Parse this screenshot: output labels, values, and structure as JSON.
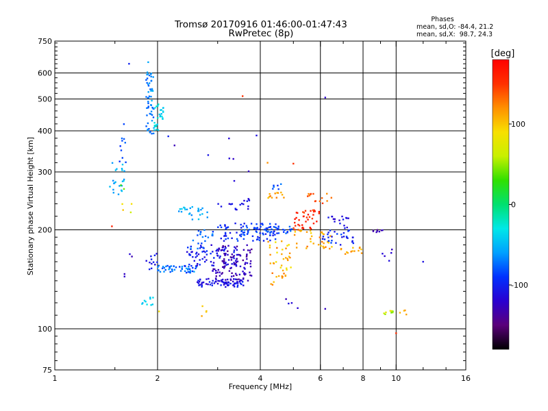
{
  "chart_data": {
    "type": "scatter",
    "title": "Tromsø 20170916 01:46:00-01:47:43",
    "subtitle": "RwPretec (8p)",
    "xlabel": "Frequency [MHz]",
    "ylabel": "Stationary phase Virtual Height [km]",
    "x_scale": "log2",
    "y_scale": "log",
    "xlim": [
      1,
      16
    ],
    "ylim": [
      75,
      750
    ],
    "x_ticks": [
      1,
      2,
      4,
      6,
      8,
      10,
      16
    ],
    "x_tick_labels": [
      "1",
      "2",
      "4",
      "6",
      "8",
      "10",
      "16"
    ],
    "y_ticks": [
      75,
      100,
      200,
      300,
      400,
      500,
      600,
      750
    ],
    "y_tick_labels": [
      "75",
      "100",
      "200",
      "300",
      "400",
      "500",
      "600",
      "750"
    ],
    "grid": true,
    "phase_stats": {
      "heading": "Phases",
      "line_o": "mean, sd,O: -84.4, 21.2",
      "line_x": "mean, sd,X:  98.7, 24.3"
    },
    "colorbar": {
      "label": "[deg]",
      "range": [
        -180,
        180
      ],
      "ticks": [
        100,
        0,
        -100
      ],
      "tick_labels": [
        "100",
        "0",
        "-100"
      ],
      "colormap": [
        "#000000",
        "#5a007a",
        "#2a00d0",
        "#0030ff",
        "#00a0ff",
        "#00e8e8",
        "#00e070",
        "#30e000",
        "#c8f000",
        "#f8e000",
        "#ff9000",
        "#ff3000",
        "#ff0000"
      ]
    },
    "clusters": [
      {
        "x": [
          1.45,
          1.6
        ],
        "y": [
          250,
          330
        ],
        "phase": [
          -40,
          -70
        ],
        "n": 22
      },
      {
        "x": [
          1.5,
          1.62
        ],
        "y": [
          300,
          420
        ],
        "phase": [
          -75,
          -95
        ],
        "n": 10
      },
      {
        "x": [
          1.55,
          1.7
        ],
        "y": [
          195,
          280
        ],
        "phase": [
          20,
          120
        ],
        "n": 6
      },
      {
        "x": [
          1.6,
          1.7
        ],
        "y": [
          135,
          175
        ],
        "phase": [
          -110,
          -130
        ],
        "n": 4
      },
      {
        "x": [
          1.84,
          1.95
        ],
        "y": [
          490,
          650
        ],
        "phase": [
          -50,
          -80
        ],
        "n": 30
      },
      {
        "x": [
          1.85,
          1.95
        ],
        "y": [
          390,
          490
        ],
        "phase": [
          -60,
          -85
        ],
        "n": 25
      },
      {
        "x": [
          1.95,
          2.08
        ],
        "y": [
          400,
          490
        ],
        "phase": [
          -20,
          -50
        ],
        "n": 28
      },
      {
        "x": [
          1.8,
          1.95
        ],
        "y": [
          118,
          126
        ],
        "phase": [
          -30,
          -55
        ],
        "n": 10
      },
      {
        "x": [
          1.85,
          2.0
        ],
        "y": [
          150,
          170
        ],
        "phase": [
          -90,
          -115
        ],
        "n": 12
      },
      {
        "x": [
          2.0,
          2.6
        ],
        "y": [
          148,
          156
        ],
        "phase": [
          -55,
          -95
        ],
        "n": 50
      },
      {
        "x": [
          2.4,
          3.5
        ],
        "y": [
          155,
          180
        ],
        "phase": [
          -90,
          -120
        ],
        "n": 80
      },
      {
        "x": [
          2.6,
          3.6
        ],
        "y": [
          134,
          142
        ],
        "phase": [
          -95,
          -125
        ],
        "n": 70
      },
      {
        "x": [
          2.9,
          3.8
        ],
        "y": [
          140,
          160
        ],
        "phase": [
          -115,
          -140
        ],
        "n": 60
      },
      {
        "x": [
          3.0,
          3.8
        ],
        "y": [
          160,
          180
        ],
        "phase": [
          -120,
          -145
        ],
        "n": 40
      },
      {
        "x": [
          2.3,
          2.8
        ],
        "y": [
          215,
          235
        ],
        "phase": [
          -40,
          -70
        ],
        "n": 25
      },
      {
        "x": [
          2.5,
          3.0
        ],
        "y": [
          175,
          200
        ],
        "phase": [
          -60,
          -90
        ],
        "n": 20
      },
      {
        "x": [
          2.6,
          2.9
        ],
        "y": [
          108,
          118
        ],
        "phase": [
          90,
          120
        ],
        "n": 4
      },
      {
        "x": [
          3.0,
          4.5
        ],
        "y": [
          185,
          210
        ],
        "phase": [
          -80,
          -110
        ],
        "n": 70
      },
      {
        "x": [
          3.5,
          5.0
        ],
        "y": [
          195,
          205
        ],
        "phase": [
          -70,
          -100
        ],
        "n": 50
      },
      {
        "x": [
          3.0,
          3.8
        ],
        "y": [
          230,
          250
        ],
        "phase": [
          -100,
          -120
        ],
        "n": 18
      },
      {
        "x": [
          4.2,
          4.7
        ],
        "y": [
          248,
          260
        ],
        "phase": [
          100,
          130
        ],
        "n": 12
      },
      {
        "x": [
          4.3,
          4.8
        ],
        "y": [
          135,
          150
        ],
        "phase": [
          100,
          130
        ],
        "n": 12
      },
      {
        "x": [
          4.2,
          5.0
        ],
        "y": [
          150,
          185
        ],
        "phase": [
          80,
          130
        ],
        "n": 30
      },
      {
        "x": [
          4.3,
          4.6
        ],
        "y": [
          265,
          285
        ],
        "phase": [
          -70,
          -100
        ],
        "n": 6
      },
      {
        "x": [
          5.0,
          6.0
        ],
        "y": [
          200,
          230
        ],
        "phase": [
          140,
          170
        ],
        "n": 40
      },
      {
        "x": [
          5.0,
          6.5
        ],
        "y": [
          175,
          200
        ],
        "phase": [
          90,
          130
        ],
        "n": 35
      },
      {
        "x": [
          5.5,
          6.5
        ],
        "y": [
          240,
          258
        ],
        "phase": [
          120,
          150
        ],
        "n": 14
      },
      {
        "x": [
          6.0,
          7.5
        ],
        "y": [
          180,
          200
        ],
        "phase": [
          -80,
          -110
        ],
        "n": 30
      },
      {
        "x": [
          6.2,
          7.3
        ],
        "y": [
          200,
          220
        ],
        "phase": [
          -100,
          -125
        ],
        "n": 16
      },
      {
        "x": [
          6.8,
          8.0
        ],
        "y": [
          168,
          178
        ],
        "phase": [
          100,
          130
        ],
        "n": 14
      },
      {
        "x": [
          8.5,
          9.2
        ],
        "y": [
          195,
          200
        ],
        "phase": [
          -120,
          -145
        ],
        "n": 8
      },
      {
        "x": [
          9.0,
          9.8
        ],
        "y": [
          110,
          114
        ],
        "phase": [
          40,
          90
        ],
        "n": 8
      },
      {
        "x": [
          10.2,
          10.8
        ],
        "y": [
          110,
          114
        ],
        "phase": [
          100,
          120
        ],
        "n": 4
      },
      {
        "x": [
          9.0,
          10.0
        ],
        "y": [
          160,
          175
        ],
        "phase": [
          -110,
          -130
        ],
        "n": 5
      },
      {
        "x": [
          4.5,
          5.5
        ],
        "y": [
          110,
          125
        ],
        "phase": [
          -110,
          -130
        ],
        "n": 4
      },
      {
        "x": [
          2.2,
          4.0
        ],
        "y": [
          280,
          400
        ],
        "phase": [
          -100,
          -130
        ],
        "n": 8
      }
    ],
    "points": [
      {
        "x": 1.65,
        "y": 640,
        "phase": -100
      },
      {
        "x": 3.55,
        "y": 510,
        "phase": 150
      },
      {
        "x": 6.2,
        "y": 505,
        "phase": -120
      },
      {
        "x": 2.15,
        "y": 385,
        "phase": -100
      },
      {
        "x": 4.2,
        "y": 320,
        "phase": 120
      },
      {
        "x": 5.0,
        "y": 318,
        "phase": 150
      },
      {
        "x": 2.02,
        "y": 113,
        "phase": 90
      },
      {
        "x": 10.0,
        "y": 97,
        "phase": 150
      },
      {
        "x": 6.2,
        "y": 115,
        "phase": -125
      },
      {
        "x": 12.0,
        "y": 160,
        "phase": -110
      },
      {
        "x": 1.47,
        "y": 205,
        "phase": 160
      }
    ]
  }
}
